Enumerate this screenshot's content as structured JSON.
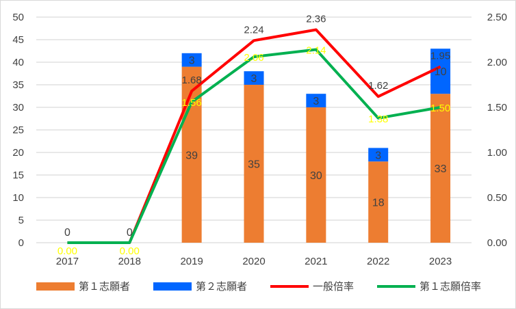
{
  "chart_data": {
    "type": "bar+line",
    "categories": [
      "2017",
      "2018",
      "2019",
      "2020",
      "2021",
      "2022",
      "2023"
    ],
    "series": [
      {
        "name": "第１志願者",
        "type": "bar",
        "axis": "left",
        "color": "#ED7D31",
        "values": [
          0,
          0,
          39,
          35,
          30,
          18,
          33
        ]
      },
      {
        "name": "第２志願者",
        "type": "bar",
        "axis": "left",
        "color": "#0066FF",
        "values": [
          0,
          0,
          3,
          3,
          3,
          3,
          10
        ]
      },
      {
        "name": "一般倍率",
        "type": "line",
        "axis": "right",
        "color": "#FF0000",
        "values": [
          0,
          0,
          1.68,
          2.24,
          2.36,
          1.62,
          1.95
        ],
        "labels": [
          "",
          "",
          "1.68",
          "2.24",
          "2.36",
          "1.62",
          "1.95"
        ]
      },
      {
        "name": "第１志願倍率",
        "type": "line",
        "axis": "right",
        "color": "#00B050",
        "values": [
          0,
          0,
          1.56,
          2.06,
          2.14,
          1.38,
          1.5
        ],
        "labels": [
          "0.00",
          "0.00",
          "1.56",
          "2.06",
          "2.14",
          "1.38",
          "1.50"
        ]
      }
    ],
    "bar_labels": [
      [
        "0",
        "0",
        "39",
        "35",
        "30",
        "18",
        "33"
      ],
      [
        "",
        "",
        "3",
        "3",
        "3",
        "3",
        "10"
      ]
    ],
    "left_axis": {
      "ylim": [
        0,
        50
      ],
      "ticks": [
        "0",
        "5",
        "10",
        "15",
        "20",
        "25",
        "30",
        "35",
        "40",
        "45",
        "50"
      ]
    },
    "right_axis": {
      "ylim": [
        0,
        2.5
      ],
      "ticks": [
        "0.00",
        "0.50",
        "1.00",
        "1.50",
        "2.00",
        "2.50"
      ]
    },
    "grid": true,
    "legend": "bottom"
  }
}
